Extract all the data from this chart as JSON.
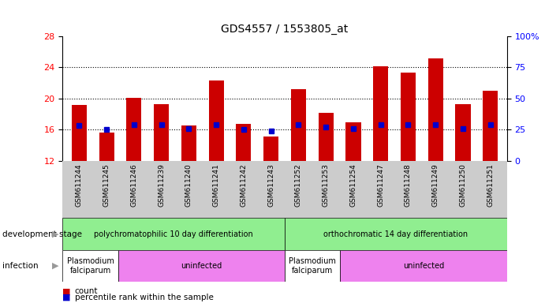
{
  "title": "GDS4557 / 1553805_at",
  "samples": [
    "GSM611244",
    "GSM611245",
    "GSM611246",
    "GSM611239",
    "GSM611240",
    "GSM611241",
    "GSM611242",
    "GSM611243",
    "GSM611252",
    "GSM611253",
    "GSM611254",
    "GSM611247",
    "GSM611248",
    "GSM611249",
    "GSM611250",
    "GSM611251"
  ],
  "counts": [
    19.2,
    15.6,
    20.1,
    19.3,
    16.5,
    22.3,
    16.7,
    15.1,
    21.2,
    18.2,
    16.9,
    24.1,
    23.3,
    25.2,
    19.3,
    21.0
  ],
  "percentile_ranks": [
    28,
    25,
    29,
    29,
    26,
    29,
    25,
    24,
    29,
    27,
    26,
    29,
    29,
    29,
    26,
    29
  ],
  "ylim_left": [
    12,
    28
  ],
  "ylim_right": [
    0,
    100
  ],
  "yticks_left": [
    12,
    16,
    20,
    24,
    28
  ],
  "yticks_right": [
    0,
    25,
    50,
    75,
    100
  ],
  "bar_color": "#cc0000",
  "marker_color": "#0000cc",
  "bg_color": "#ffffff",
  "xticklabel_bg": "#cccccc",
  "dev_stage_label": "development stage",
  "infection_label": "infection",
  "dev_stages": [
    {
      "label": "polychromatophilic 10 day differentiation",
      "start": 0,
      "end": 8,
      "color": "#90ee90"
    },
    {
      "label": "orthochromatic 14 day differentiation",
      "start": 8,
      "end": 16,
      "color": "#90ee90"
    }
  ],
  "infections": [
    {
      "label": "Plasmodium\nfalciparum",
      "start": 0,
      "end": 2,
      "color": "#ffffff"
    },
    {
      "label": "uninfected",
      "start": 2,
      "end": 8,
      "color": "#ee82ee"
    },
    {
      "label": "Plasmodium\nfalciparum",
      "start": 8,
      "end": 10,
      "color": "#ffffff"
    },
    {
      "label": "uninfected",
      "start": 10,
      "end": 16,
      "color": "#ee82ee"
    }
  ],
  "legend_count_color": "#cc0000",
  "legend_pct_color": "#0000cc"
}
